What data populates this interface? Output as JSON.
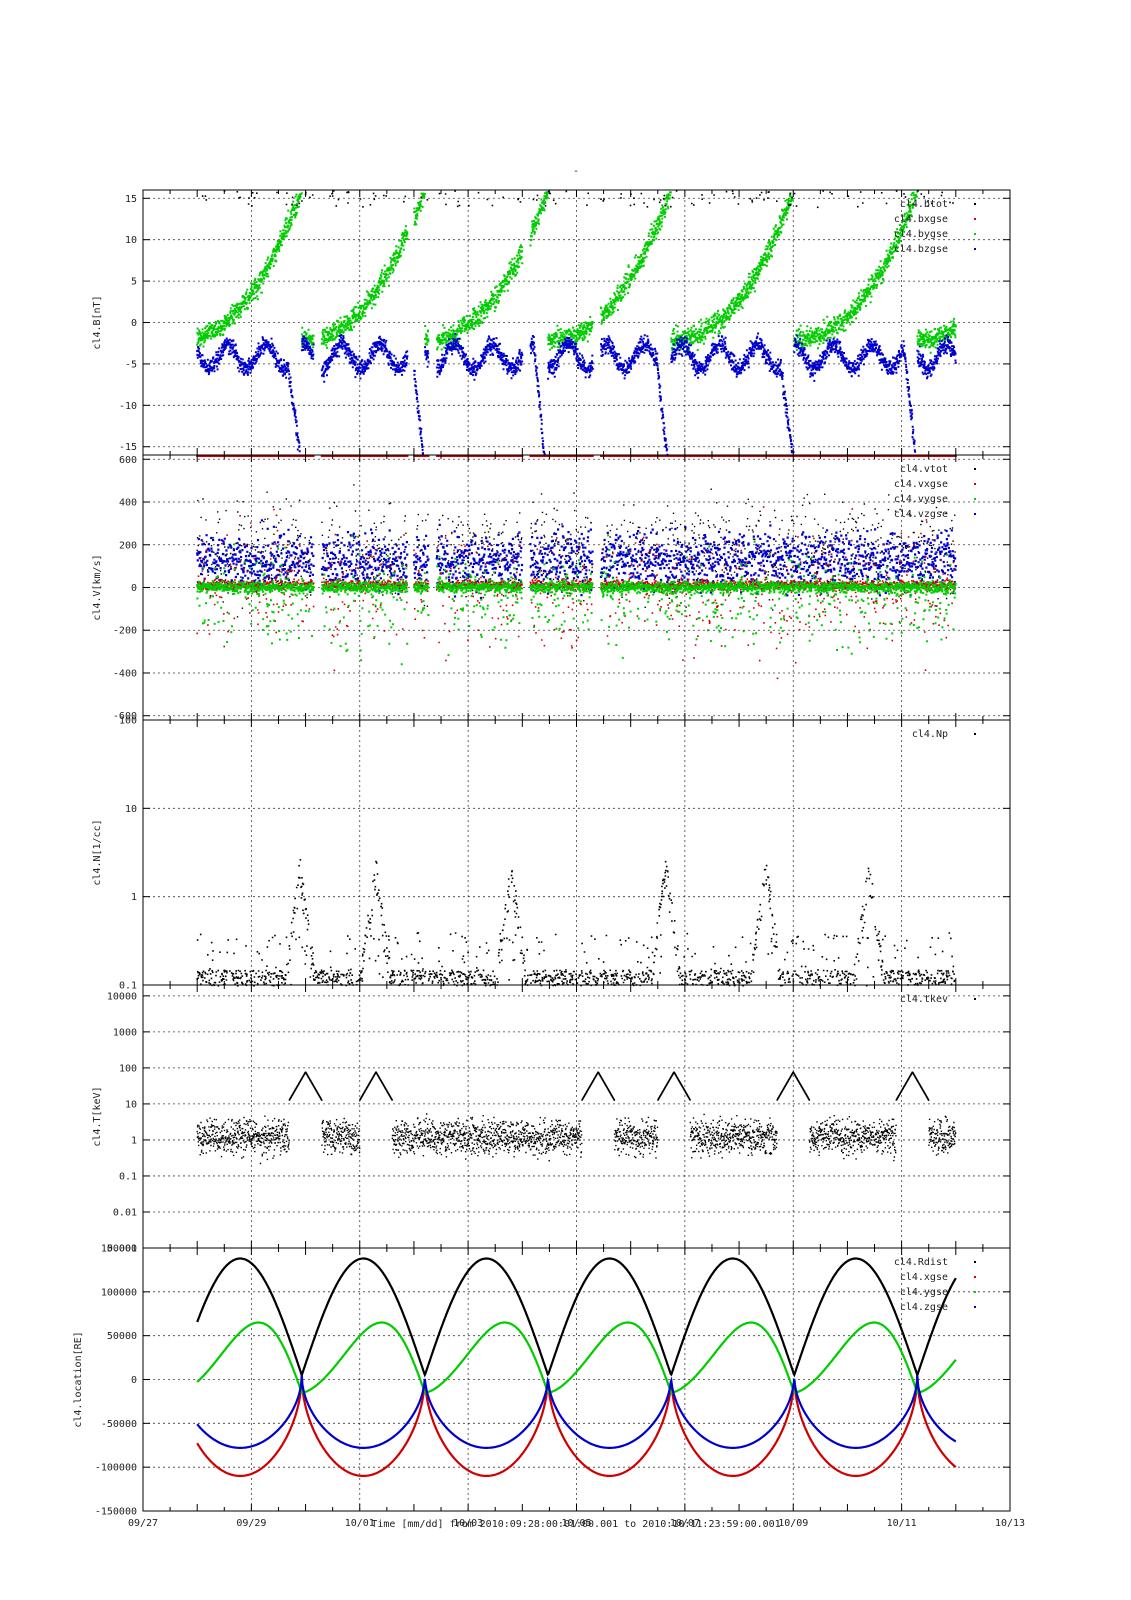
{
  "figure": {
    "title": "-",
    "xlabel": "Time [mm/dd]  from 2010:09:28:00:01:00.001  to  2010:10:11:23:59:00.001",
    "x_tick_labels": [
      "09/27",
      "09/29",
      "10/01",
      "10/03",
      "10/05",
      "10/07",
      "10/09",
      "10/11",
      "10/13"
    ],
    "colors": {
      "black": "#000000",
      "red": "#d00000",
      "green": "#00cc00",
      "blue": "#0000cc"
    }
  },
  "chart_data": [
    {
      "type": "scatter",
      "ylabel": "cl4.B[nT]",
      "ylim": [
        -16,
        16
      ],
      "y_tick_labels": [
        "-15",
        "-10",
        "-5",
        "0",
        "5",
        "10",
        "15"
      ],
      "xlim_days_from_0927": [
        0,
        16
      ],
      "grid": true,
      "legend_placement": "top-right",
      "series": [
        {
          "name": "cl4.btot",
          "color": "#000000"
        },
        {
          "name": "cl4.bxgse",
          "color": "#d00000"
        },
        {
          "name": "cl4.bygse",
          "color": "#00cc00"
        },
        {
          "name": "cl4.bzgse",
          "color": "#0000cc"
        }
      ]
    },
    {
      "type": "scatter",
      "ylabel": "cl4.V[km/s]",
      "ylim": [
        -620,
        620
      ],
      "y_tick_labels": [
        "-600",
        "-400",
        "-200",
        "0",
        "200",
        "400",
        "600"
      ],
      "grid": true,
      "legend_placement": "top-right",
      "series": [
        {
          "name": "cl4.vtot",
          "color": "#000000"
        },
        {
          "name": "cl4.vxgse",
          "color": "#d00000"
        },
        {
          "name": "cl4.vygse",
          "color": "#00cc00"
        },
        {
          "name": "cl4.vzgse",
          "color": "#0000cc"
        }
      ]
    },
    {
      "type": "scatter",
      "ylabel": "cl4.N[1/cc]",
      "yscale": "log",
      "ylim": [
        0.1,
        100
      ],
      "y_tick_labels": [
        "0.1",
        "1",
        "10",
        "100"
      ],
      "grid": true,
      "legend_placement": "top-right",
      "series": [
        {
          "name": "cl4.Np",
          "color": "#000000"
        }
      ]
    },
    {
      "type": "scatter",
      "ylabel": "cl4.T[keV]",
      "yscale": "log",
      "ylim": [
        0.001,
        20000
      ],
      "y_tick_labels": [
        "0.001",
        "0.01",
        "0.1",
        "1",
        "10",
        "100",
        "1000",
        "10000"
      ],
      "grid": true,
      "legend_placement": "top-right",
      "series": [
        {
          "name": "cl4.tkev",
          "color": "#000000"
        }
      ]
    },
    {
      "type": "line",
      "ylabel": "cl4.location[RE]",
      "ylim": [
        -150000,
        150000
      ],
      "y_tick_labels": [
        "-150000",
        "-100000",
        "-50000",
        "0",
        "50000",
        "100000",
        "150000"
      ],
      "grid": true,
      "legend_placement": "top-right",
      "orbit_period_days": 2.272,
      "perigee_days_from_0927": [
        2.93,
        5.2,
        7.47,
        9.75,
        12.02,
        14.29
      ],
      "series": [
        {
          "name": "cl4.Rdist",
          "color": "#000000",
          "range": [
            5000,
            138000
          ]
        },
        {
          "name": "cl4.xgse",
          "color": "#d00000",
          "range": [
            -110000,
            5000
          ]
        },
        {
          "name": "cl4.ygse",
          "color": "#00cc00",
          "range": [
            -15000,
            65000
          ]
        },
        {
          "name": "cl4.zgse",
          "color": "#0000cc",
          "range": [
            -78000,
            5000
          ]
        }
      ]
    }
  ]
}
